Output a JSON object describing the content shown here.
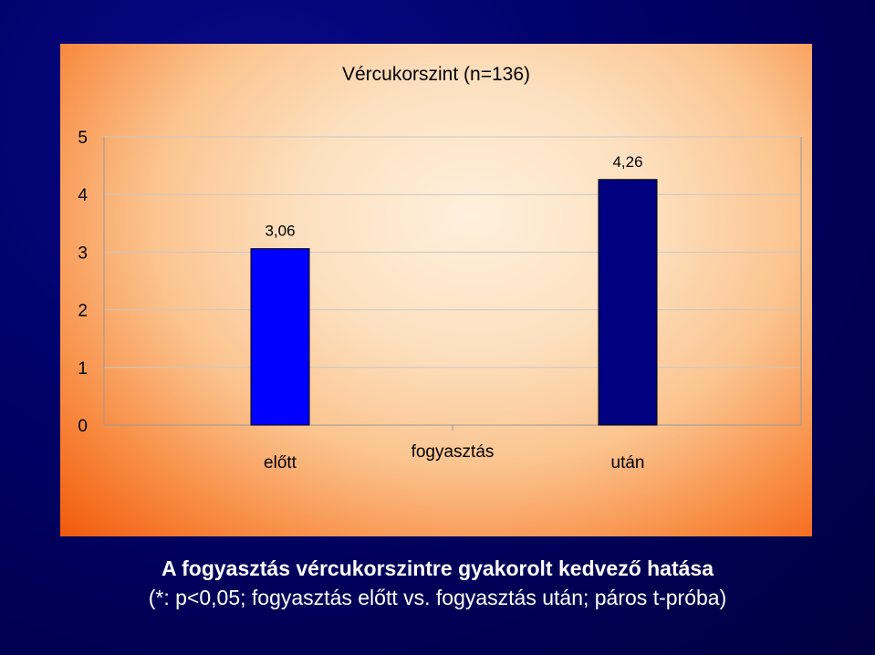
{
  "chart_data": {
    "type": "bar",
    "title": "Vércukorszint (n=136)",
    "categories": [
      "előtt",
      "után"
    ],
    "center_label": "fogyasztás",
    "values": [
      3.06,
      4.26
    ],
    "value_labels": [
      "3,06",
      "4,26"
    ],
    "colors": [
      "#0000ff",
      "#000080"
    ],
    "ylim": [
      0,
      5
    ],
    "yticks": [
      "0",
      "1",
      "2",
      "3",
      "4",
      "5"
    ],
    "grid": true,
    "panel_gradient": [
      "#fff0dc",
      "#f25a0c"
    ]
  },
  "caption": {
    "line1": "A fogyasztás vércukorszintre gyakorolt kedvező hatása",
    "line2": "(*: p<0,05; fogyasztás előtt vs. fogyasztás után; páros t-próba)"
  },
  "colors": {
    "background": "#000066",
    "text_light": "#ffffff",
    "grid": "#c8c8c8"
  }
}
